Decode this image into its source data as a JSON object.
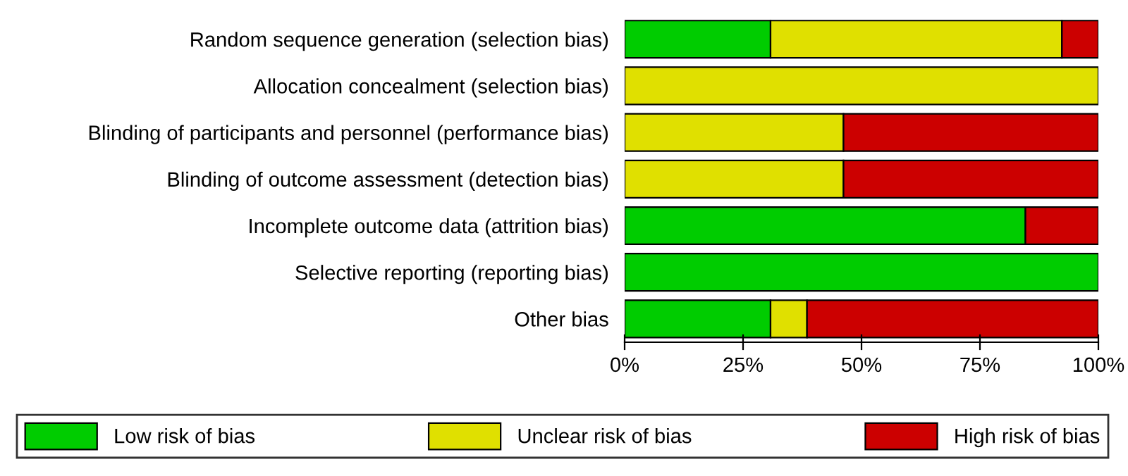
{
  "chart_data": {
    "type": "bar",
    "orientation": "horizontal",
    "stacked": true,
    "categories": [
      "Random sequence generation (selection bias)",
      "Allocation concealment (selection bias)",
      "Blinding of participants and personnel (performance bias)",
      "Blinding of outcome assessment (detection bias)",
      "Incomplete outcome data (attrition bias)",
      "Selective reporting (reporting bias)",
      "Other bias"
    ],
    "series": [
      {
        "name": "Low risk of bias",
        "color": "#00cc00",
        "values": [
          30.8,
          0,
          0,
          0,
          84.6,
          100,
          30.8
        ]
      },
      {
        "name": "Unclear risk of bias",
        "color": "#e0e000",
        "values": [
          61.5,
          100,
          46.2,
          46.2,
          0,
          0,
          7.7
        ]
      },
      {
        "name": "High risk of bias",
        "color": "#cc0000",
        "values": [
          7.7,
          0,
          53.8,
          53.8,
          15.4,
          0,
          61.5
        ]
      }
    ],
    "xlim": [
      0,
      100
    ],
    "xticks": [
      {
        "value": 0,
        "label": "0%"
      },
      {
        "value": 25,
        "label": "25%"
      },
      {
        "value": 50,
        "label": "50%"
      },
      {
        "value": 75,
        "label": "75%"
      },
      {
        "value": 100,
        "label": "100%"
      }
    ],
    "grid": false,
    "legend": "bottom"
  }
}
